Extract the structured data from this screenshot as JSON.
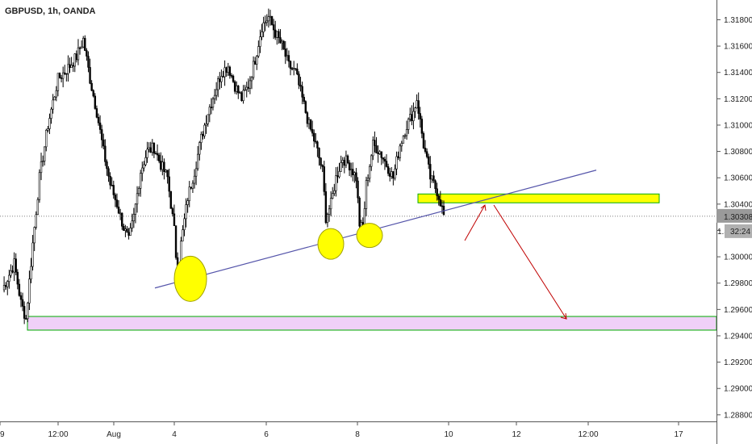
{
  "chart_data": {
    "type": "candlestick",
    "title": "GBPUSD, 1h, OANDA",
    "price_axis": {
      "ticks": [
        "1.31800",
        "1.31600",
        "1.31400",
        "1.31200",
        "1.31000",
        "1.30800",
        "1.30600",
        "1.30400",
        "1.30200",
        "1.30000",
        "1.29800",
        "1.29600",
        "1.29400",
        "1.29200",
        "1.29000",
        "1.28800"
      ],
      "ylim": [
        1.2875,
        1.3195
      ]
    },
    "time_axis": {
      "ticks": [
        "12:00",
        "Aug",
        "4",
        "6",
        "8",
        "10",
        "12",
        "12:00",
        "17",
        "19"
      ]
    },
    "last_price": {
      "label": "1.30308",
      "value": 1.30308,
      "countdown": "32:24",
      "partial_label": "1."
    },
    "price_path": [
      [
        0,
        1.2975
      ],
      [
        7,
        1.2995
      ],
      [
        11,
        1.2965
      ],
      [
        14,
        1.2953
      ],
      [
        18,
        1.301
      ],
      [
        22,
        1.306
      ],
      [
        27,
        1.31
      ],
      [
        33,
        1.3135
      ],
      [
        40,
        1.3145
      ],
      [
        44,
        1.3152
      ],
      [
        48,
        1.3165
      ],
      [
        52,
        1.3135
      ],
      [
        56,
        1.311
      ],
      [
        60,
        1.308
      ],
      [
        64,
        1.3055
      ],
      [
        68,
        1.304
      ],
      [
        72,
        1.3022
      ],
      [
        75,
        1.3012
      ],
      [
        78,
        1.303
      ],
      [
        82,
        1.3065
      ],
      [
        86,
        1.308
      ],
      [
        90,
        1.3083
      ],
      [
        94,
        1.307
      ],
      [
        98,
        1.306
      ],
      [
        102,
        1.302
      ],
      [
        104,
        1.2983
      ],
      [
        106,
        1.301
      ],
      [
        110,
        1.3045
      ],
      [
        114,
        1.3065
      ],
      [
        118,
        1.309
      ],
      [
        122,
        1.311
      ],
      [
        126,
        1.3125
      ],
      [
        130,
        1.314
      ],
      [
        134,
        1.3145
      ],
      [
        138,
        1.313
      ],
      [
        142,
        1.312
      ],
      [
        146,
        1.313
      ],
      [
        150,
        1.315
      ],
      [
        154,
        1.3175
      ],
      [
        158,
        1.3182
      ],
      [
        162,
        1.317
      ],
      [
        166,
        1.316
      ],
      [
        170,
        1.3145
      ],
      [
        174,
        1.314
      ],
      [
        178,
        1.312
      ],
      [
        182,
        1.31
      ],
      [
        186,
        1.3085
      ],
      [
        190,
        1.3065
      ],
      [
        192,
        1.303
      ],
      [
        195,
        1.304
      ],
      [
        198,
        1.306
      ],
      [
        202,
        1.3075
      ],
      [
        206,
        1.307
      ],
      [
        210,
        1.306
      ],
      [
        212,
        1.3025
      ],
      [
        214,
        1.302
      ],
      [
        216,
        1.3055
      ],
      [
        220,
        1.3085
      ],
      [
        224,
        1.308
      ],
      [
        228,
        1.307
      ],
      [
        232,
        1.306
      ],
      [
        236,
        1.3085
      ],
      [
        240,
        1.31
      ],
      [
        244,
        1.311
      ],
      [
        246,
        1.312
      ],
      [
        250,
        1.3085
      ],
      [
        254,
        1.306
      ],
      [
        258,
        1.305
      ],
      [
        260,
        1.3042
      ],
      [
        262,
        1.3031
      ]
    ],
    "annotations": {
      "resistance_zone": {
        "type": "rectangle",
        "color": "#ffff00",
        "border": "#00aa00",
        "y1": 1.30477,
        "y2": 1.3041
      },
      "support_zone": {
        "type": "rectangle",
        "color": "#f0d0f8",
        "border": "#00aa00",
        "y1": 1.29547,
        "y2": 1.29443
      },
      "trendline": {
        "color": "#5555aa",
        "y_start": 1.29763,
        "y_end": 1.30658
      },
      "markers": [
        {
          "shape": "circle",
          "color": "#ffff00",
          "y": 1.29833
        },
        {
          "shape": "circle",
          "color": "#ffff00",
          "y": 1.30098
        },
        {
          "shape": "circle",
          "color": "#ffff00",
          "y": 1.30162
        }
      ],
      "forecast_arrows": {
        "color": "#c00000"
      }
    }
  }
}
